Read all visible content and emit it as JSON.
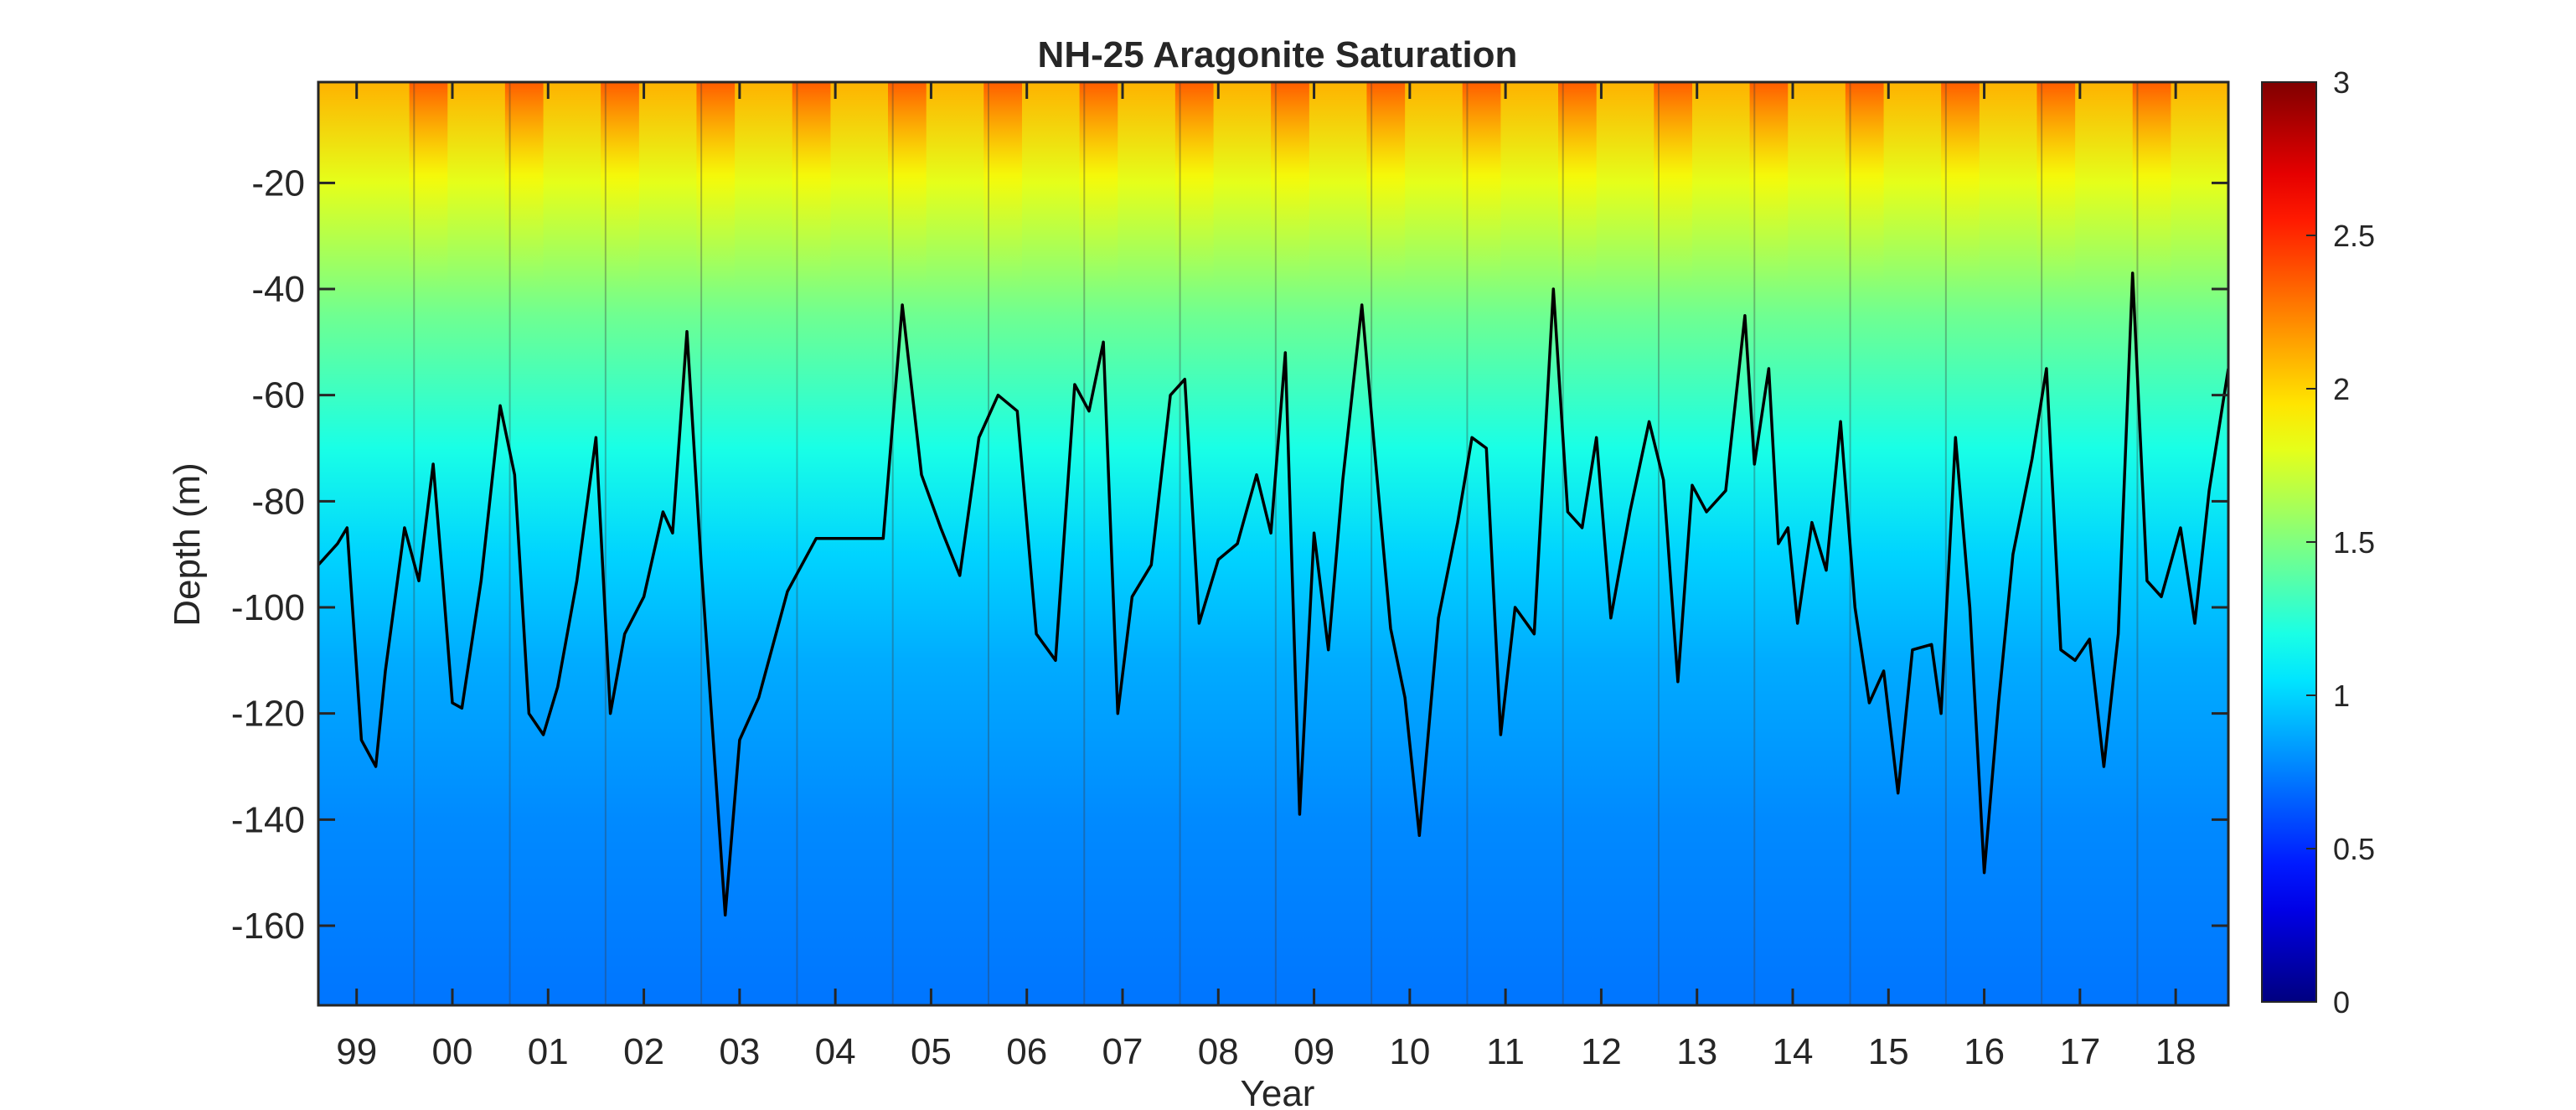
{
  "chart_data": {
    "type": "heatmap",
    "title": "NH-25 Aragonite Saturation",
    "xlabel": "Year",
    "ylabel": "Depth (m)",
    "xlim": [
      1998.6,
      2018.55
    ],
    "ylim": [
      -175,
      -1
    ],
    "x_ticks": [
      1999,
      2000,
      2001,
      2002,
      2003,
      2004,
      2005,
      2006,
      2007,
      2008,
      2009,
      2010,
      2011,
      2012,
      2013,
      2014,
      2015,
      2016,
      2017,
      2018
    ],
    "x_tick_labels": [
      "99",
      "00",
      "01",
      "02",
      "03",
      "04",
      "05",
      "06",
      "07",
      "08",
      "09",
      "10",
      "11",
      "12",
      "13",
      "14",
      "15",
      "16",
      "17",
      "18"
    ],
    "y_ticks": [
      -160,
      -140,
      -120,
      -100,
      -80,
      -60,
      -40,
      -20
    ],
    "y_tick_labels": [
      "-160",
      "-140",
      "-120",
      "-100",
      "-80",
      "-60",
      "-40",
      "-20"
    ],
    "colorbar": {
      "colormap": "jet",
      "clim": [
        0,
        3
      ],
      "ticks": [
        0,
        0.5,
        1,
        1.5,
        2,
        2.5,
        3
      ],
      "tick_labels": [
        "0",
        "0.5",
        "1",
        "1.5",
        "2",
        "2.5",
        "3"
      ]
    },
    "grid": false,
    "field_description": "Aragonite saturation state increasing toward the surface: about 0.6–0.8 near 170 m, near 1 at the contour, and 1.5–2.5 at the surface, highest in summer-fall periods.",
    "contour": {
      "level": 1,
      "color": "#000000",
      "x": [
        1998.6,
        1998.8,
        1998.9,
        1999.05,
        1999.2,
        1999.3,
        1999.5,
        1999.65,
        1999.8,
        1999.9,
        2000.0,
        2000.1,
        2000.3,
        2000.5,
        2000.65,
        2000.8,
        2000.95,
        2001.1,
        2001.3,
        2001.5,
        2001.65,
        2001.8,
        2002.0,
        2002.2,
        2002.3,
        2002.45,
        2002.6,
        2002.85,
        2003.0,
        2003.2,
        2003.5,
        2003.8,
        2004.2,
        2004.5,
        2004.7,
        2004.9,
        2005.1,
        2005.3,
        2005.5,
        2005.7,
        2005.9,
        2006.1,
        2006.3,
        2006.5,
        2006.65,
        2006.8,
        2006.95,
        2007.1,
        2007.3,
        2007.5,
        2007.65,
        2007.8,
        2008.0,
        2008.2,
        2008.4,
        2008.55,
        2008.7,
        2008.85,
        2009.0,
        2009.15,
        2009.3,
        2009.5,
        2009.65,
        2009.8,
        2009.95,
        2010.1,
        2010.3,
        2010.5,
        2010.65,
        2010.8,
        2010.95,
        2011.1,
        2011.3,
        2011.5,
        2011.65,
        2011.8,
        2011.95,
        2012.1,
        2012.3,
        2012.5,
        2012.65,
        2012.8,
        2012.95,
        2013.1,
        2013.3,
        2013.5,
        2013.6,
        2013.75,
        2013.85,
        2013.95,
        2014.05,
        2014.2,
        2014.35,
        2014.5,
        2014.65,
        2014.8,
        2014.95,
        2015.1,
        2015.25,
        2015.45,
        2015.55,
        2015.7,
        2015.85,
        2016.0,
        2016.15,
        2016.3,
        2016.5,
        2016.65,
        2016.8,
        2016.95,
        2017.1,
        2017.25,
        2017.4,
        2017.55,
        2017.7,
        2017.85,
        2018.05,
        2018.2,
        2018.35,
        2018.55
      ],
      "y": [
        -92,
        -88,
        -85,
        -125,
        -130,
        -112,
        -85,
        -95,
        -73,
        -95,
        -118,
        -119,
        -95,
        -62,
        -75,
        -120,
        -124,
        -115,
        -95,
        -68,
        -120,
        -105,
        -98,
        -82,
        -86,
        -48,
        -92,
        -158,
        -125,
        -117,
        -97,
        -87,
        -87,
        -87,
        -43,
        -75,
        -85,
        -94,
        -68,
        -60,
        -63,
        -105,
        -110,
        -58,
        -63,
        -50,
        -120,
        -98,
        -92,
        -60,
        -57,
        -103,
        -91,
        -88,
        -75,
        -86,
        -52,
        -139,
        -86,
        -108,
        -76,
        -43,
        -74,
        -104,
        -117,
        -143,
        -102,
        -84,
        -68,
        -70,
        -124,
        -100,
        -105,
        -40,
        -82,
        -85,
        -68,
        -102,
        -82,
        -65,
        -76,
        -114,
        -77,
        -82,
        -78,
        -45,
        -73,
        -55,
        -88,
        -85,
        -103,
        -84,
        -93,
        -65,
        -100,
        -118,
        -112,
        -135,
        -108,
        -107,
        -120,
        -68,
        -100,
        -150,
        -118,
        -90,
        -72,
        -55,
        -108,
        -110,
        -106,
        -130,
        -105,
        -37,
        -95,
        -98,
        -85,
        -103,
        -78,
        -55
      ]
    }
  }
}
